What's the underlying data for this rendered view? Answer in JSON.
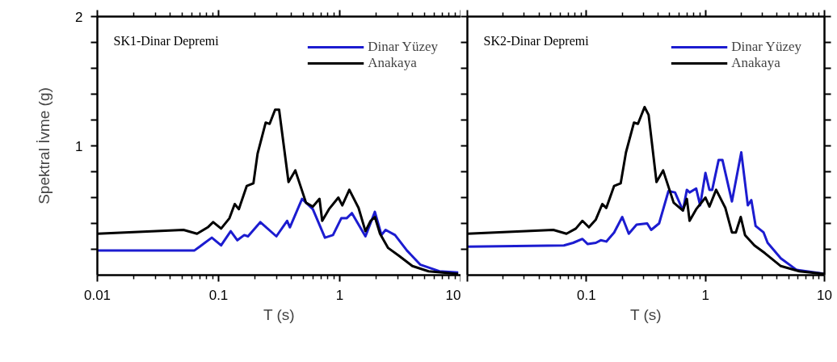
{
  "chart_data": [
    {
      "type": "line",
      "title": "SK1-Dinar Depremi",
      "xlabel": "T (s)",
      "ylabel": "Spektral İvme (g)",
      "log": "x",
      "xlim": [
        0.01,
        10
      ],
      "xticks": [
        0.01,
        0.1,
        1,
        10
      ],
      "ylim": [
        0,
        2
      ],
      "yticks": [
        {
          "value": 0.2,
          "label": null
        },
        {
          "value": 0.4,
          "label": null
        },
        {
          "value": 0.6,
          "label": null
        },
        {
          "value": 0.8,
          "label": null
        },
        1,
        {
          "value": 1.2,
          "label": null
        },
        {
          "value": 1.4,
          "label": null
        },
        {
          "value": 1.6,
          "label": null
        },
        {
          "value": 1.8,
          "label": null
        },
        2
      ],
      "grid": false,
      "legend": "top right",
      "marker": "none",
      "line_style": "solid",
      "series": [
        {
          "name": "Dinar Yüzey",
          "color": "#1c1cd0",
          "x": [
            0.01,
            0.063,
            0.0699,
            0.088,
            0.105,
            0.126,
            0.143,
            0.163,
            0.175,
            0.221,
            0.3,
            0.368,
            0.388,
            0.489,
            0.6,
            0.755,
            0.88,
            1.03,
            1.14,
            1.26,
            1.63,
            1.95,
            2.21,
            2.39,
            2.86,
            3.59,
            4.64,
            6.64,
            9.5
          ],
          "values": [
            0.19,
            0.19,
            0.22,
            0.29,
            0.23,
            0.34,
            0.27,
            0.31,
            0.3,
            0.41,
            0.3,
            0.42,
            0.37,
            0.59,
            0.51,
            0.29,
            0.31,
            0.44,
            0.44,
            0.48,
            0.3,
            0.49,
            0.31,
            0.35,
            0.31,
            0.19,
            0.08,
            0.03,
            0.02
          ]
        },
        {
          "name": "Anakaya",
          "color": "#000000",
          "x": [
            0.01,
            0.0514,
            0.0664,
            0.0815,
            0.0903,
            0.105,
            0.123,
            0.136,
            0.147,
            0.171,
            0.194,
            0.21,
            0.245,
            0.264,
            0.293,
            0.316,
            0.378,
            0.43,
            0.527,
            0.6,
            0.681,
            0.717,
            0.815,
            0.974,
            1.05,
            1.2,
            1.43,
            1.63,
            1.8,
            1.95,
            2.15,
            2.51,
            3.08,
            3.98,
            5.41,
            9.5
          ],
          "values": [
            0.32,
            0.35,
            0.32,
            0.37,
            0.41,
            0.36,
            0.44,
            0.55,
            0.51,
            0.69,
            0.71,
            0.94,
            1.18,
            1.17,
            1.28,
            1.28,
            0.72,
            0.81,
            0.56,
            0.53,
            0.59,
            0.42,
            0.51,
            0.6,
            0.54,
            0.66,
            0.52,
            0.34,
            0.42,
            0.45,
            0.32,
            0.21,
            0.15,
            0.07,
            0.03,
            0.01
          ]
        }
      ]
    },
    {
      "type": "line",
      "title": "SK2-Dinar Depremi",
      "xlabel": "T (s)",
      "log": "x",
      "xlim": [
        0.01,
        10
      ],
      "xticks": [
        {
          "value": 0.01,
          "label": null
        },
        0.1,
        1,
        10
      ],
      "ylim": [
        0,
        2
      ],
      "yticks": [
        {
          "value": 0.2,
          "label": null
        },
        {
          "value": 0.4,
          "label": null
        },
        {
          "value": 0.6,
          "label": null
        },
        {
          "value": 0.8,
          "label": null
        },
        {
          "value": 1,
          "label": null
        },
        {
          "value": 1.2,
          "label": null
        },
        {
          "value": 1.4,
          "label": null
        },
        {
          "value": 1.6,
          "label": null
        },
        {
          "value": 1.8,
          "label": null
        },
        {
          "value": 2,
          "label": null
        }
      ],
      "tick_labels": "x",
      "grid": false,
      "legend": "top right",
      "marker": "none",
      "line_style": "solid",
      "series": [
        {
          "name": "Dinar Yüzey",
          "color": "#1c1cd0",
          "x": [
            0.01,
            0.0647,
            0.0774,
            0.0926,
            0.1026,
            0.12,
            0.132,
            0.147,
            0.171,
            0.2,
            0.227,
            0.264,
            0.324,
            0.35,
            0.408,
            0.489,
            0.555,
            0.647,
            0.698,
            0.736,
            0.836,
            0.903,
            1.0,
            1.08,
            1.14,
            1.29,
            1.39,
            1.67,
            2.0,
            2.27,
            2.43,
            2.64,
            3.08,
            3.33,
            4.3,
            5.84,
            10
          ],
          "values": [
            0.22,
            0.23,
            0.25,
            0.28,
            0.24,
            0.25,
            0.27,
            0.26,
            0.33,
            0.45,
            0.32,
            0.39,
            0.4,
            0.35,
            0.4,
            0.65,
            0.64,
            0.5,
            0.66,
            0.64,
            0.67,
            0.54,
            0.79,
            0.66,
            0.66,
            0.89,
            0.89,
            0.57,
            0.95,
            0.54,
            0.58,
            0.38,
            0.33,
            0.25,
            0.13,
            0.04,
            0.01
          ]
        },
        {
          "name": "Anakaya",
          "color": "#000000",
          "x": [
            0.01,
            0.0527,
            0.068,
            0.0815,
            0.0926,
            0.105,
            0.12,
            0.136,
            0.147,
            0.171,
            0.194,
            0.215,
            0.251,
            0.271,
            0.308,
            0.333,
            0.388,
            0.441,
            0.541,
            0.647,
            0.698,
            0.736,
            0.836,
            1.0,
            1.08,
            1.23,
            1.47,
            1.67,
            1.8,
            1.98,
            2.15,
            2.58,
            3.16,
            4.3,
            6.15,
            10
          ],
          "values": [
            0.32,
            0.35,
            0.32,
            0.36,
            0.42,
            0.37,
            0.43,
            0.55,
            0.52,
            0.69,
            0.71,
            0.95,
            1.18,
            1.17,
            1.3,
            1.24,
            0.72,
            0.81,
            0.56,
            0.5,
            0.59,
            0.42,
            0.51,
            0.6,
            0.53,
            0.66,
            0.52,
            0.33,
            0.33,
            0.45,
            0.31,
            0.23,
            0.17,
            0.07,
            0.03,
            0.01
          ]
        }
      ]
    }
  ]
}
